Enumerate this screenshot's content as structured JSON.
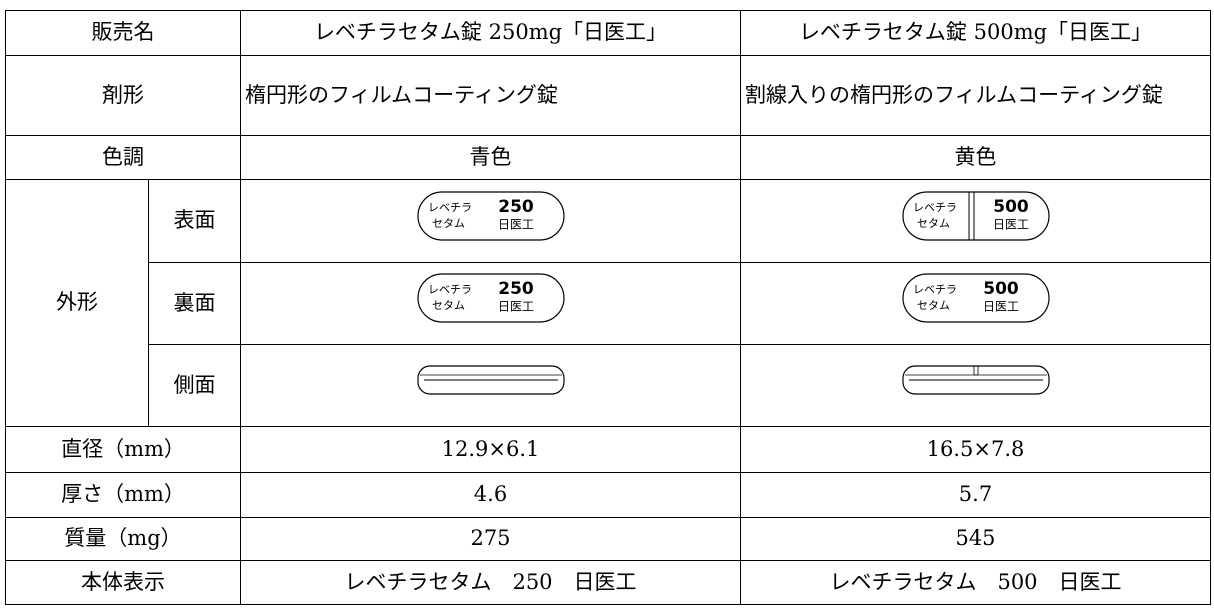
{
  "table": {
    "header": [
      "販売名",
      "レベチラセタム錠 250mg「日医工」",
      "レベチラセタム錠 500mg「日医工」"
    ],
    "rows": [
      [
        "剤形",
        "楕円形のフィルムコーティング錠",
        "割線入りの楕円形のフィルムコーティング錠"
      ],
      [
        "色調",
        "青色",
        "黄色"
      ]
    ],
    "appearance": {
      "label": "外形",
      "faces": [
        {
          "label": "表面",
          "tablets": [
            {
              "line1": "レベチラ",
              "line2": "セタム",
              "strength": "250",
              "maker": "日医工"
            },
            {
              "line1": "レベチラ",
              "line2": "セタム",
              "strength": "500",
              "maker": "日医工"
            }
          ]
        },
        {
          "label": "裏面",
          "tablets": [
            {
              "line1": "レベチラ",
              "line2": "セタム",
              "strength": "250",
              "maker": "日医工"
            },
            {
              "line1": "レベチラ",
              "line2": "セタム",
              "strength": "500",
              "maker": "日医工"
            }
          ]
        },
        {
          "label": "側面"
        }
      ]
    },
    "specs": [
      [
        "直径（mm）",
        "12.9×6.1",
        "16.5×7.8"
      ],
      [
        "厚さ（mm）",
        "4.6",
        "5.7"
      ],
      [
        "質量（mg）",
        "275",
        "545"
      ],
      [
        "本体表示",
        "レベチラセタム　250　日医工",
        "レベチラセタム　500　日医工"
      ]
    ]
  }
}
